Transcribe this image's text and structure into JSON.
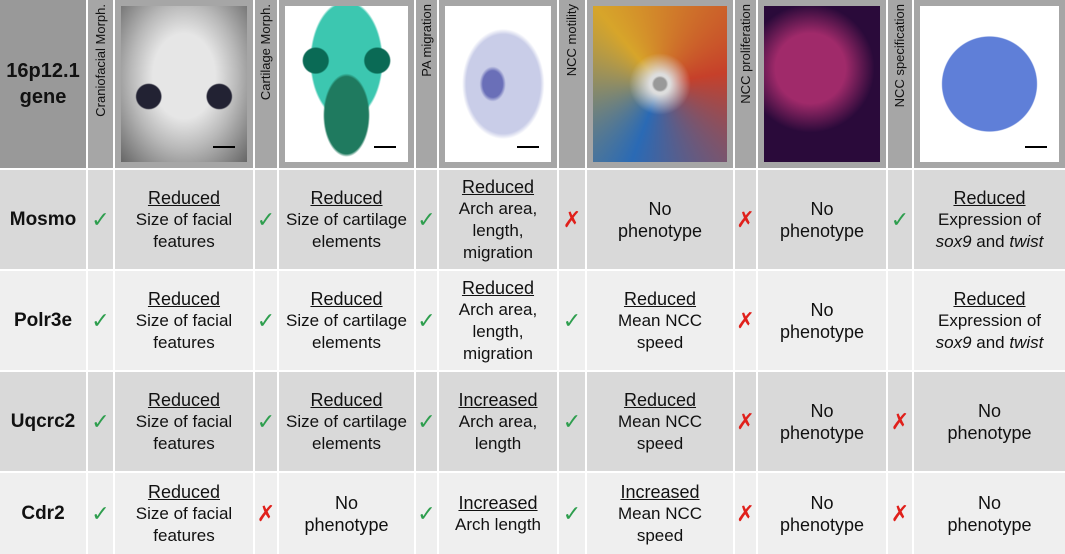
{
  "header": {
    "gene_label": "16p12.1 gene",
    "assays": [
      "Craniofacial Morph.",
      "Cartilage Morph.",
      "PA migration",
      "NCC motility",
      "NCC proliferation",
      "NCC specification"
    ]
  },
  "rows": [
    {
      "gene": "Mosmo",
      "cells": [
        {
          "mark": "✓",
          "heading": "Reduced",
          "description": [
            {
              "text": "Size of facial features"
            }
          ]
        },
        {
          "mark": "✓",
          "heading": "Reduced",
          "description": [
            {
              "text": "Size of cartilage elements"
            }
          ]
        },
        {
          "mark": "✓",
          "heading": "Reduced",
          "description": [
            {
              "text": "Arch area, length, migration"
            }
          ]
        },
        {
          "mark": "✗",
          "text": "No phenotype"
        },
        {
          "mark": "✗",
          "text": "No phenotype"
        },
        {
          "mark": "✓",
          "heading": "Reduced",
          "description": [
            {
              "text": "Expression of "
            },
            {
              "text": "sox9",
              "italic": true
            },
            {
              "text": " and "
            },
            {
              "text": "twist",
              "italic": true
            }
          ]
        }
      ]
    },
    {
      "gene": "Polr3e",
      "cells": [
        {
          "mark": "✓",
          "heading": "Reduced",
          "description": [
            {
              "text": "Size of facial features"
            }
          ]
        },
        {
          "mark": "✓",
          "heading": "Reduced",
          "description": [
            {
              "text": "Size of cartilage elements"
            }
          ]
        },
        {
          "mark": "✓",
          "heading": "Reduced",
          "description": [
            {
              "text": "Arch area, length, migration"
            }
          ]
        },
        {
          "mark": "✓",
          "heading": "Reduced",
          "description": [
            {
              "text": "Mean NCC speed"
            }
          ]
        },
        {
          "mark": "✗",
          "text": "No phenotype"
        },
        {
          "heading": "Reduced",
          "description": [
            {
              "text": "Expression of "
            },
            {
              "text": "sox9",
              "italic": true
            },
            {
              "text": " and "
            },
            {
              "text": "twist",
              "italic": true
            }
          ]
        }
      ]
    },
    {
      "gene": "Uqcrc2",
      "cells": [
        {
          "mark": "✓",
          "heading": "Reduced",
          "description": [
            {
              "text": "Size of facial features"
            }
          ]
        },
        {
          "mark": "✓",
          "heading": "Reduced",
          "description": [
            {
              "text": "Size of cartilage elements"
            }
          ]
        },
        {
          "mark": "✓",
          "heading": "Increased",
          "description": [
            {
              "text": "Arch area, length"
            }
          ]
        },
        {
          "mark": "✓",
          "heading": "Reduced",
          "description": [
            {
              "text": "Mean NCC speed"
            }
          ]
        },
        {
          "mark": "✗",
          "text": "No phenotype"
        },
        {
          "mark": "✗",
          "text": "No phenotype"
        }
      ]
    },
    {
      "gene": "Cdr2",
      "cells": [
        {
          "mark": "✓",
          "heading": "Reduced",
          "description": [
            {
              "text": "Size of facial features"
            }
          ]
        },
        {
          "mark": "✗",
          "text": "No phenotype"
        },
        {
          "mark": "✓",
          "heading": "Increased",
          "description": [
            {
              "text": "Arch length"
            }
          ]
        },
        {
          "mark": "✓",
          "heading": "Increased",
          "description": [
            {
              "text": "Mean NCC speed"
            }
          ]
        },
        {
          "mark": "✗",
          "text": "No phenotype"
        },
        {
          "mark": "✗",
          "text": "No phenotype"
        }
      ]
    }
  ]
}
